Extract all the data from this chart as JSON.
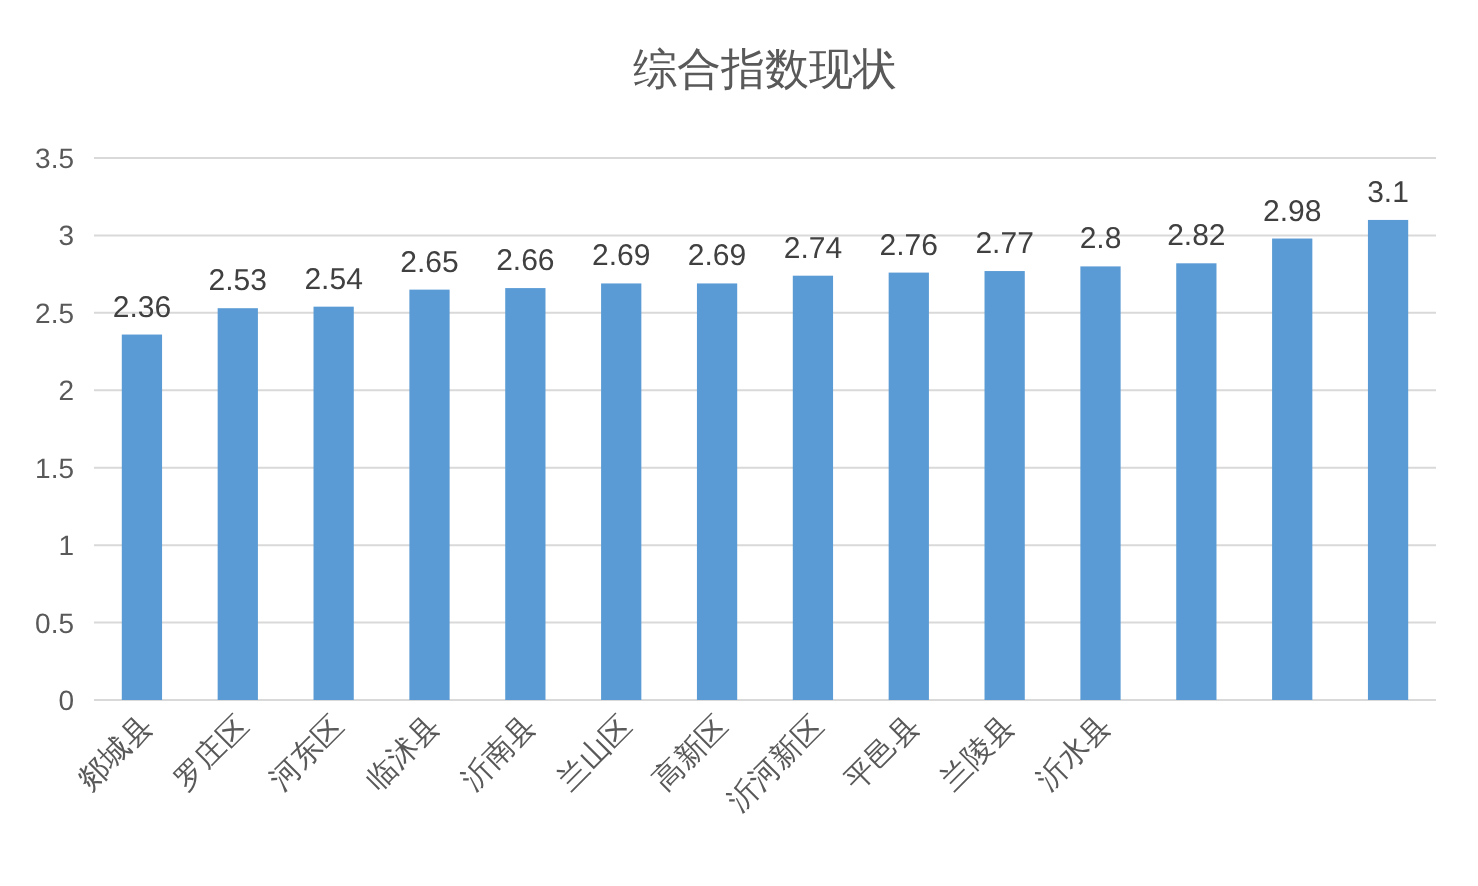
{
  "chart_data": {
    "type": "bar",
    "title": "综合指数现状",
    "categories": [
      "郯城县",
      "罗庄区",
      "河东区",
      "临沭县",
      "沂南县",
      "兰山区",
      "高新区",
      "沂河新区",
      "平邑县",
      "兰陵县",
      "沂水县",
      null,
      null,
      null
    ],
    "values": [
      2.36,
      2.53,
      2.54,
      2.65,
      2.66,
      2.69,
      2.69,
      2.74,
      2.76,
      2.77,
      2.8,
      2.82,
      2.98,
      3.1
    ],
    "color": "#5b9bd5",
    "ylim": [
      0,
      3.5
    ],
    "yticks": [
      0,
      0.5,
      1,
      1.5,
      2,
      2.5,
      3,
      3.5
    ],
    "grid": "y",
    "data_labels": true
  }
}
